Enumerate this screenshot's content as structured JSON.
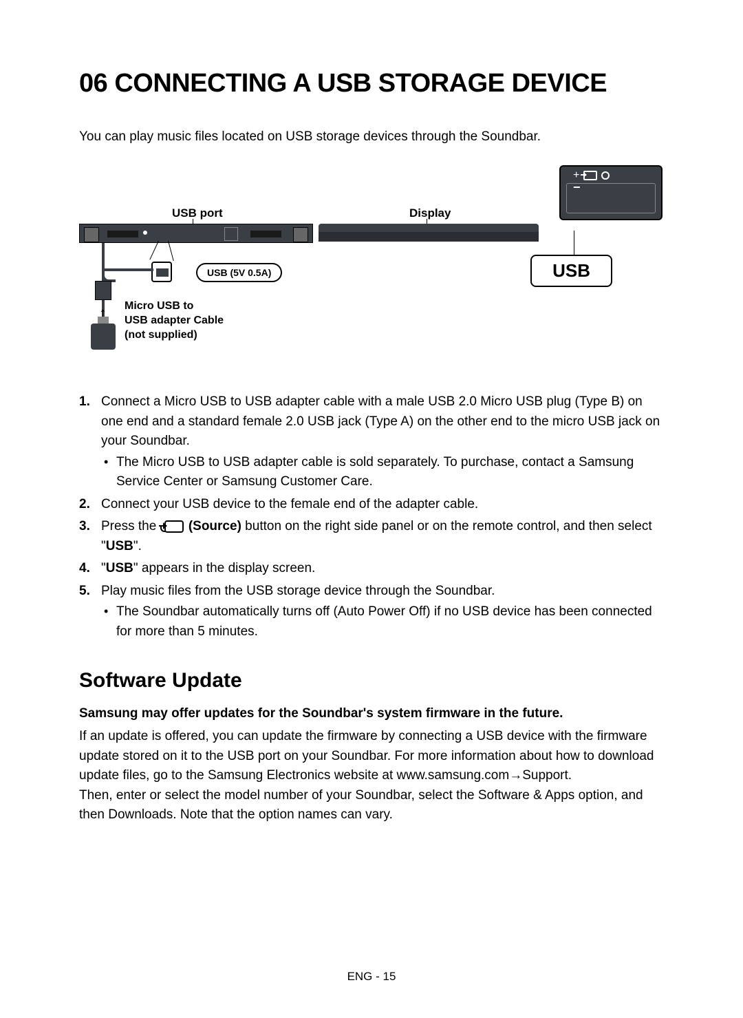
{
  "title": "06  CONNECTING A USB STORAGE DEVICE",
  "intro": "You can play music files located on USB storage devices through the Soundbar.",
  "labels": {
    "usb_port": "USB port",
    "display": "Display",
    "usb_spec": "USB (5V 0.5A)",
    "micro_usb_l1": "Micro USB to",
    "micro_usb_l2": "USB adapter Cable",
    "micro_usb_l3": "(not supplied)",
    "usb_badge": "USB",
    "tv_plus": "+",
    "tv_minus": "−"
  },
  "steps": {
    "s1": "Connect a Micro USB to USB adapter cable with a male USB 2.0 Micro USB plug (Type B) on one end and a standard female 2.0 USB jack (Type A) on the other end to the micro USB jack on your Soundbar.",
    "s1_sub": "The Micro USB to USB adapter cable is sold separately. To purchase, contact a Samsung Service Center or Samsung Customer Care.",
    "s2": "Connect your USB device to the female end of the adapter cable.",
    "s3_pre": "Press the ",
    "s3_bold": " (Source)",
    "s3_mid": " button on the right side panel or on the remote control, and then select \"",
    "s3_usb": "USB",
    "s3_post": "\".",
    "s4_pre": "\"",
    "s4_usb": "USB",
    "s4_post": "\" appears in the display screen.",
    "s5": "Play music files from the USB storage device through the Soundbar.",
    "s5_sub": "The Soundbar automatically turns off (Auto Power Off) if no USB device has been connected for more than 5 minutes."
  },
  "subsection": "Software Update",
  "update_bold": "Samsung may offer updates for the Soundbar's system firmware in the future.",
  "update_body1": "If an update is offered, you can update the firmware by connecting a USB device with the firmware update stored on it to the USB port on your Soundbar. For more information about how to download update files, go to the Samsung Electronics website at www.samsung.com→Support.",
  "update_body2": "Then, enter or select the model number of your Soundbar, select the Software & Apps option, and then Downloads. Note that the option names can vary.",
  "footer": "ENG - 15",
  "colors": {
    "text": "#000000",
    "bg": "#ffffff",
    "device": "#3a3f45"
  }
}
